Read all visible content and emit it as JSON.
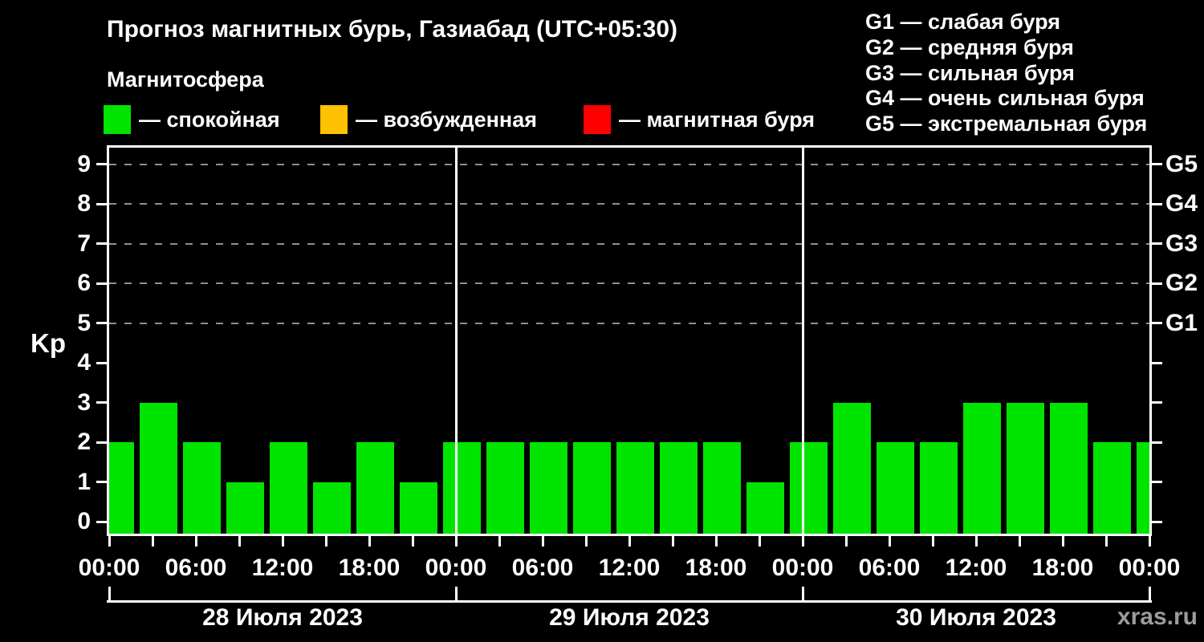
{
  "title": "Прогноз магнитных бурь, Газиабад (UTC+05:30)",
  "subtitle": "Магнитосфера",
  "watermark": "xras.ru",
  "colors": {
    "background": "#000000",
    "axis": "#ffffff",
    "grid_dashed": "#8f8f8f",
    "quiet_green": "#00e400",
    "excited_orange": "#ffc200",
    "storm_red": "#ff0000",
    "watermark_gray": "#9c9c9c"
  },
  "legend": {
    "items": [
      {
        "label": "— спокойная",
        "color": "#00e400"
      },
      {
        "label": "— возбужденная",
        "color": "#ffc200"
      },
      {
        "label": "— магнитная буря",
        "color": "#ff0000"
      }
    ]
  },
  "g_legend": {
    "items": [
      "G1 — слабая буря",
      "G2 — средняя буря",
      "G3 — сильная буря",
      "G4 — очень сильная буря",
      "G5 — экстремальная буря"
    ]
  },
  "y_axis": {
    "label": "Kp",
    "ticks": [
      0,
      1,
      2,
      3,
      4,
      5,
      6,
      7,
      8,
      9
    ]
  },
  "right_axis": {
    "levels": [
      {
        "label": "G1",
        "kp": 5
      },
      {
        "label": "G2",
        "kp": 6
      },
      {
        "label": "G3",
        "kp": 7
      },
      {
        "label": "G4",
        "kp": 8
      },
      {
        "label": "G5",
        "kp": 9
      }
    ]
  },
  "x_axis": {
    "labels": [
      "00:00",
      "06:00",
      "12:00",
      "18:00",
      "00:00",
      "06:00",
      "12:00",
      "18:00",
      "00:00",
      "06:00",
      "12:00",
      "18:00",
      "00:00"
    ],
    "label_interval_hours": 6,
    "tick_interval_hours": 3,
    "total_hours": 72
  },
  "days": [
    {
      "label": "28 Июля 2023"
    },
    {
      "label": "29 Июля 2023"
    },
    {
      "label": "30 Июля 2023"
    }
  ],
  "chart_data": {
    "type": "bar",
    "title": "Прогноз магнитных бурь, Газиабад (UTC+05:30)",
    "ylabel": "Kp",
    "ylim": [
      0,
      9.5
    ],
    "interval_hours": 3,
    "bar_color": "#00e400",
    "x_hours": [
      0,
      3,
      6,
      9,
      12,
      15,
      18,
      21,
      24,
      27,
      30,
      33,
      36,
      39,
      42,
      45,
      48,
      51,
      54,
      57,
      60,
      63,
      66,
      69,
      72
    ],
    "values": [
      2,
      3,
      2,
      1,
      2,
      1,
      2,
      1,
      2,
      2,
      2,
      2,
      2,
      2,
      2,
      1,
      2,
      3,
      2,
      2,
      3,
      3,
      3,
      2,
      2
    ],
    "day_labels": [
      "28 Июля 2023",
      "29 Июля 2023",
      "30 Июля 2023"
    ],
    "day_boundaries_hours": [
      0,
      24,
      48,
      72
    ],
    "g_thresholds": [
      {
        "label": "G1",
        "kp": 5
      },
      {
        "label": "G2",
        "kp": 6
      },
      {
        "label": "G3",
        "kp": 7
      },
      {
        "label": "G4",
        "kp": 8
      },
      {
        "label": "G5",
        "kp": 9
      }
    ],
    "grid": "dashed horizontal lines at Kp 5..9",
    "legend_position": "top-left"
  }
}
